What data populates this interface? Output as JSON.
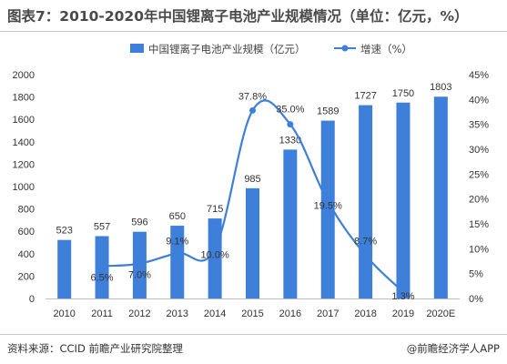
{
  "title": "图表7：2010-2020年中国锂离子电池产业规模情况（单位：亿元，%）",
  "source": "资料来源：CCID 前瞻产业研究院整理",
  "credit": "@前瞻经济学人APP",
  "colors": {
    "bar": "#3d7fd9",
    "line": "#3d7fd9",
    "axis": "#595959"
  },
  "chart_data": {
    "type": "bar",
    "title": "图表7：2010-2020年中国锂离子电池产业规模情况（单位：亿元，%）",
    "categories": [
      "2010",
      "2011",
      "2012",
      "2013",
      "2014",
      "2015",
      "2016",
      "2017",
      "2018",
      "2019",
      "2020E"
    ],
    "legend_position": "top",
    "grid": false,
    "series": [
      {
        "name": "中国锂离子电池产业规模（亿元）",
        "type": "bar",
        "axis": "left",
        "values": [
          523,
          557,
          596,
          650,
          715,
          985,
          1330,
          1589,
          1727,
          1750,
          1803
        ]
      },
      {
        "name": "增速（%）",
        "type": "line",
        "axis": "right",
        "values": [
          null,
          6.5,
          7.0,
          9.1,
          10.0,
          37.8,
          35.0,
          19.5,
          8.7,
          1.3,
          null
        ]
      }
    ],
    "y_left": {
      "ylim": [
        0,
        2000
      ],
      "ticks": [
        0,
        200,
        400,
        600,
        800,
        1000,
        1200,
        1400,
        1600,
        1800,
        2000
      ]
    },
    "y_right": {
      "ylim": [
        0,
        45
      ],
      "ticks": [
        "0%",
        "5%",
        "10%",
        "15%",
        "20%",
        "25%",
        "30%",
        "35%",
        "40%",
        "45%"
      ]
    },
    "bar_labels": [
      "523",
      "557",
      "596",
      "650",
      "715",
      "985",
      "1330",
      "1589",
      "1727",
      "1750",
      "1803"
    ],
    "line_labels": [
      "",
      "6.5%",
      "7.0%",
      "9.1%",
      "10.0%",
      "37.8%",
      "35.0%",
      "19.5%",
      "8.7%",
      "1.3%",
      ""
    ]
  }
}
